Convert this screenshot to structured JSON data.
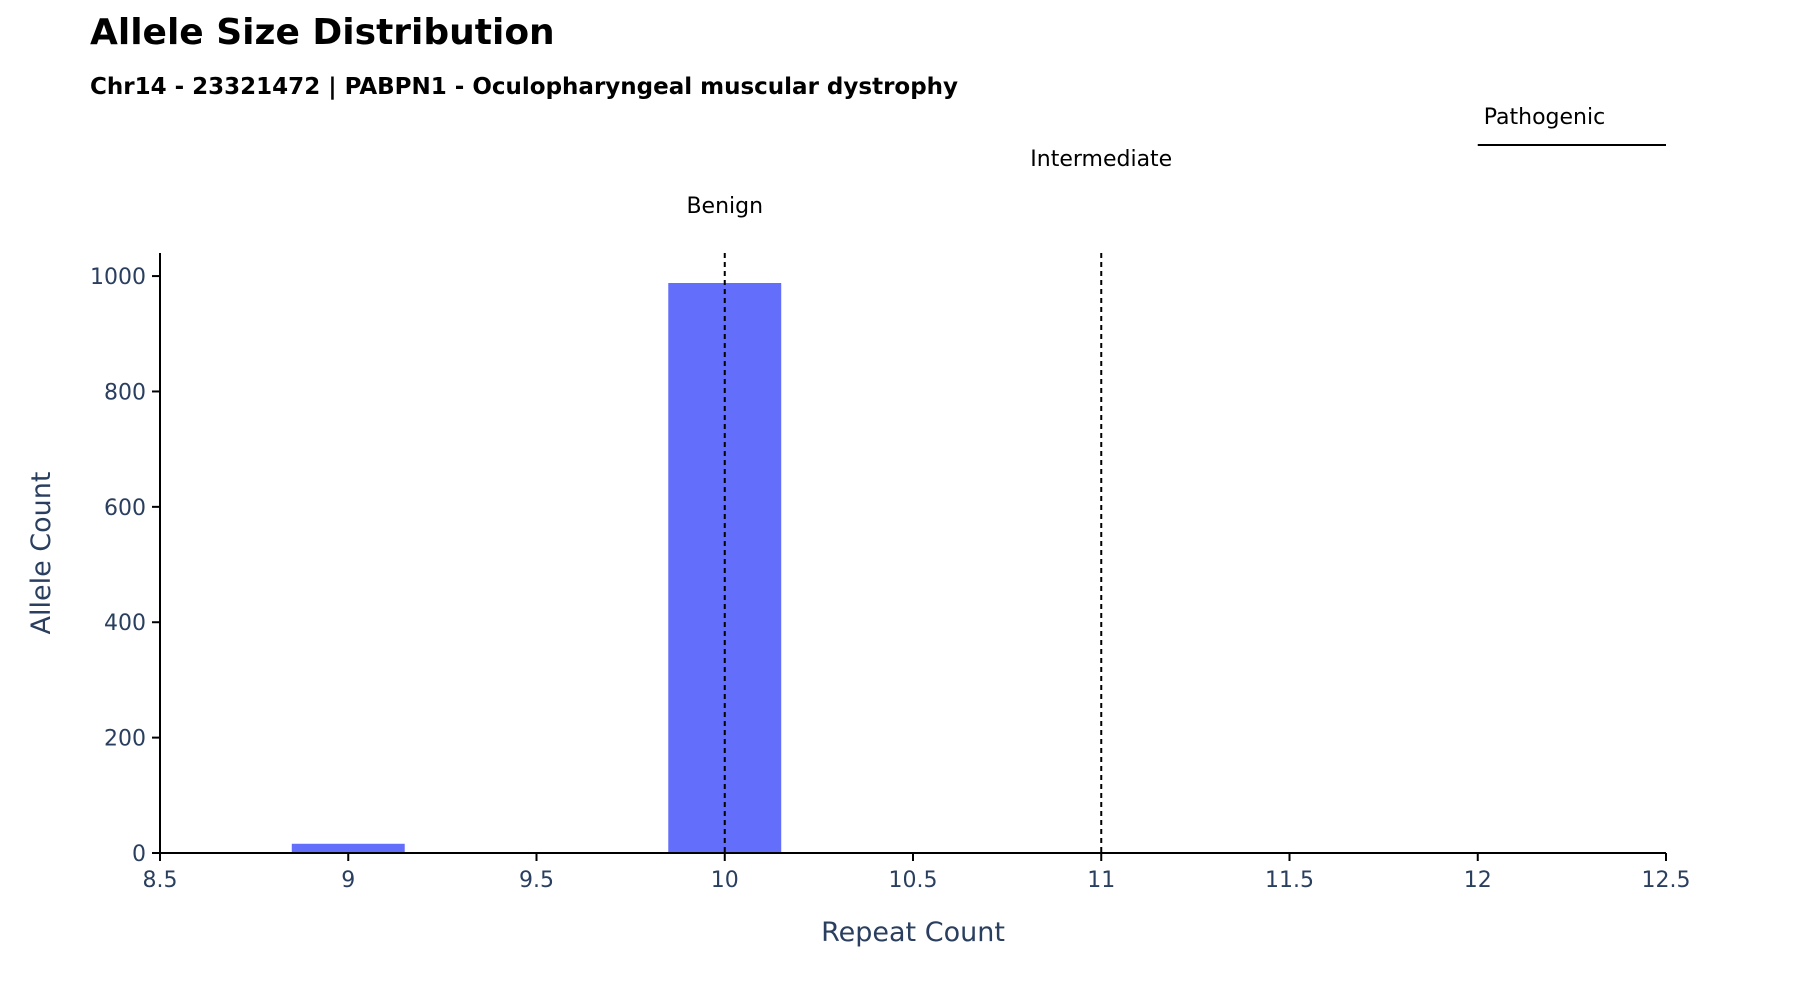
{
  "title": "Allele Size Distribution",
  "subtitle": "Chr14 - 23321472 | PABPN1 - Oculopharyngeal muscular dystrophy",
  "chart_data": {
    "type": "bar",
    "xlabel": "Repeat Count",
    "ylabel": "Allele Count",
    "xlim": [
      8.5,
      12.5
    ],
    "ylim": [
      0,
      1040
    ],
    "x_ticks": [
      8.5,
      9,
      9.5,
      10,
      10.5,
      11,
      11.5,
      12,
      12.5
    ],
    "x_tick_labels": [
      "8.5",
      "9",
      "9.5",
      "10",
      "10.5",
      "11",
      "11.5",
      "12",
      "12.5"
    ],
    "y_ticks": [
      0,
      200,
      400,
      600,
      800,
      1000
    ],
    "y_tick_labels": [
      "0",
      "200",
      "400",
      "600",
      "800",
      "1000"
    ],
    "bar_width": 0.3,
    "bars": [
      {
        "x": 9,
        "value": 16
      },
      {
        "x": 10,
        "value": 988
      }
    ],
    "bar_color": "#636efa",
    "grid": false,
    "threshold_lines": [
      {
        "x": 10,
        "label": "Benign",
        "style": "dashed"
      },
      {
        "x": 11,
        "label": "Intermediate",
        "style": "dashed"
      }
    ],
    "pathogenic_region": {
      "x_start": 12,
      "x_end": 12.5,
      "label": "Pathogenic"
    }
  }
}
